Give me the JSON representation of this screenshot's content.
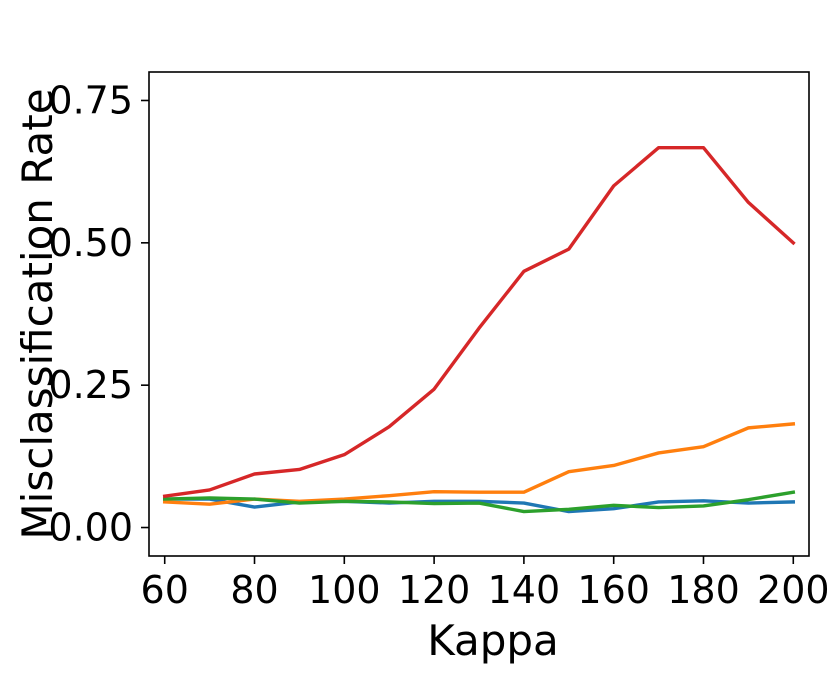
{
  "chart_data": {
    "type": "line",
    "title": "",
    "xlabel": "Kappa",
    "ylabel": "Misclassification Rate",
    "xlim": [
      56.5,
      203.5
    ],
    "ylim": [
      -0.05,
      0.8
    ],
    "xticks": [
      60,
      80,
      100,
      120,
      140,
      160,
      180,
      200
    ],
    "xtick_labels": [
      "60",
      "80",
      "100",
      "120",
      "140",
      "160",
      "180",
      "200"
    ],
    "yticks": [
      0.0,
      0.25,
      0.5,
      0.75
    ],
    "ytick_labels": [
      "0.00",
      "0.25",
      "0.50",
      "0.75"
    ],
    "grid": false,
    "legend": "none",
    "x": [
      60,
      70,
      80,
      90,
      100,
      110,
      120,
      130,
      140,
      150,
      160,
      170,
      180,
      190,
      200
    ],
    "series": [
      {
        "color": "#1f77b4",
        "values": [
          0.05,
          0.05,
          0.036,
          0.045,
          0.046,
          0.043,
          0.046,
          0.046,
          0.043,
          0.028,
          0.033,
          0.045,
          0.047,
          0.043,
          0.045
        ]
      },
      {
        "color": "#ff7f0e",
        "values": [
          0.045,
          0.041,
          0.05,
          0.046,
          0.05,
          0.056,
          0.063,
          0.062,
          0.062,
          0.098,
          0.109,
          0.131,
          0.142,
          0.175,
          0.182
        ]
      },
      {
        "color": "#2ca02c",
        "values": [
          0.05,
          0.052,
          0.05,
          0.043,
          0.046,
          0.045,
          0.042,
          0.043,
          0.028,
          0.032,
          0.039,
          0.035,
          0.038,
          0.049,
          0.062
        ]
      },
      {
        "color": "#d62728",
        "values": [
          0.055,
          0.066,
          0.094,
          0.102,
          0.128,
          0.177,
          0.243,
          0.35,
          0.45,
          0.489,
          0.6,
          0.667,
          0.667,
          0.571,
          0.5
        ]
      }
    ]
  }
}
